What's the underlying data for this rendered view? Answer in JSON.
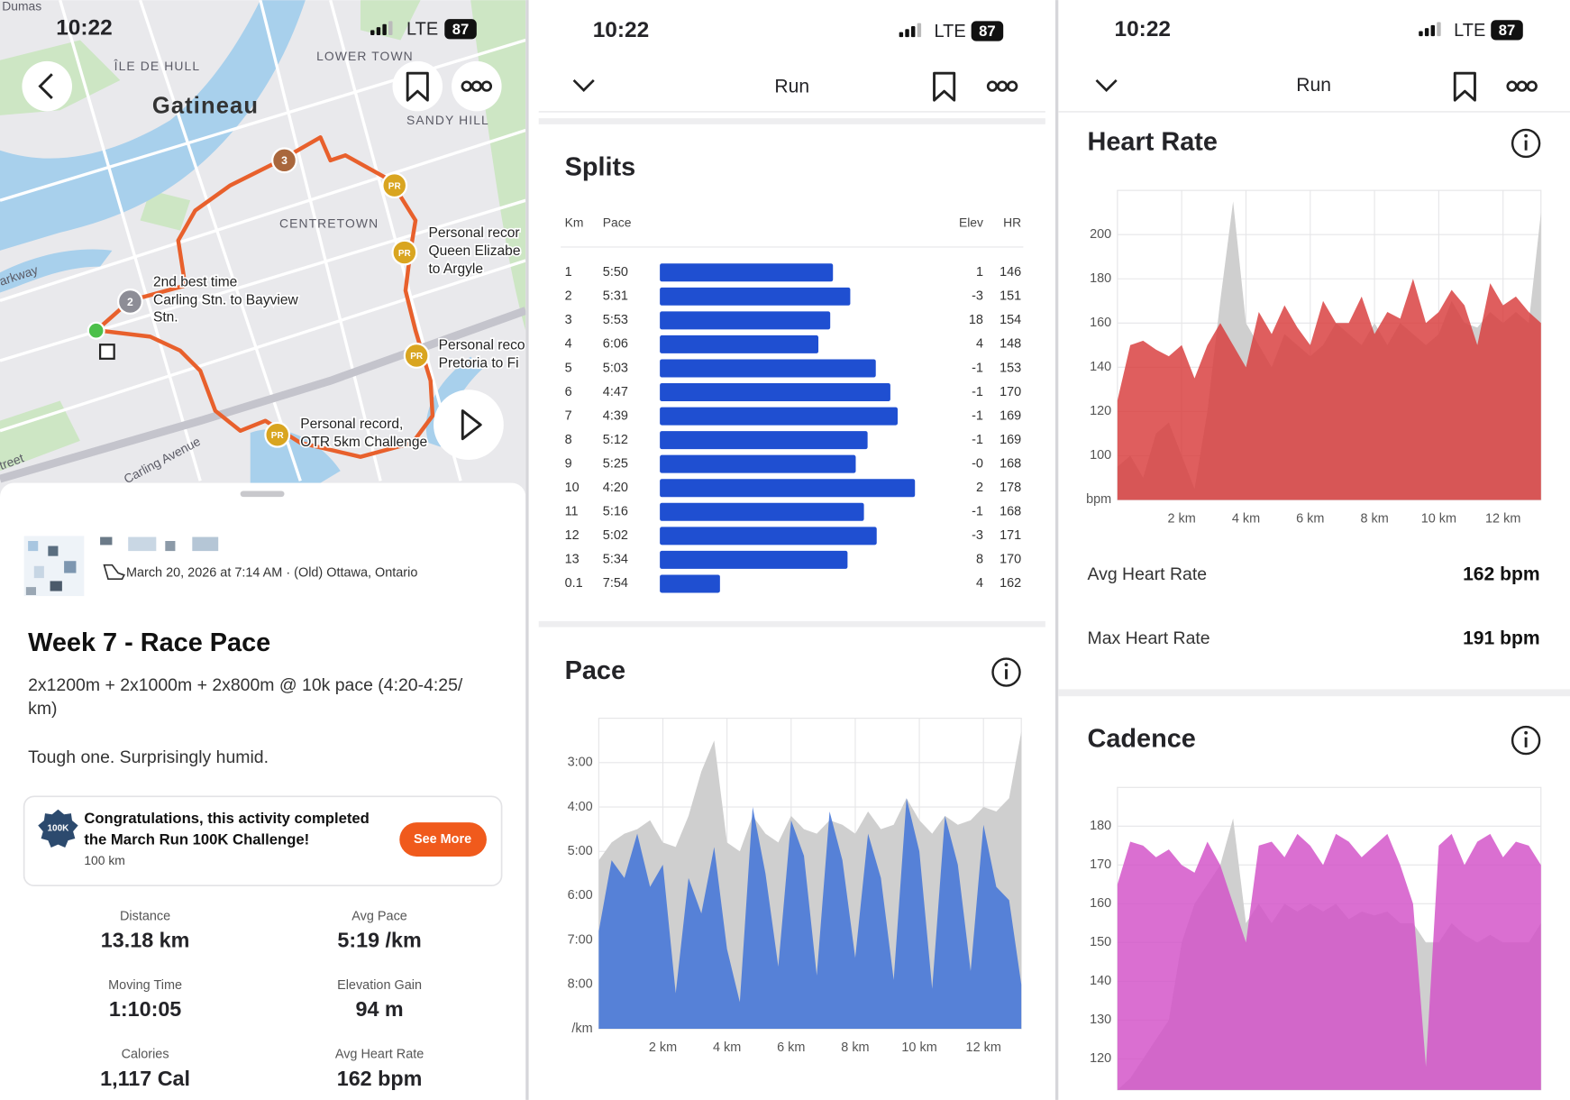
{
  "status_bar": {
    "time": "10:22",
    "network": "LTE",
    "battery": "87"
  },
  "map": {
    "labels": [
      "Dumas",
      "ÎLE DE HULL",
      "LOWER TOWN",
      "Gatineau",
      "SANDY HILL",
      "CENTRETOWN",
      "arkway",
      "Carling Avenue",
      "treet"
    ],
    "notes": [
      "Personal recor",
      "Queen Elizabe",
      "to Argyle",
      "2nd best time",
      "Carling Stn. to Bayview",
      "Stn.",
      "Personal reco",
      "Pretoria to Fi",
      "Personal record,",
      "OTR 5km Challenge"
    ],
    "markers": [
      "3",
      "PR",
      "PR",
      "2",
      "PR",
      "PR"
    ]
  },
  "activity": {
    "date_location": "March 20, 2026 at 7:14 AM · (Old) Ottawa, Ontario",
    "title": "Week 7 - Race Pace",
    "description": [
      "2x1200m + 2x1000m + 2x800m @ 10k pace (4:20-4:25/",
      "km)"
    ],
    "note": "Tough one. Surprisingly humid.",
    "challenge": {
      "badge": "100K",
      "lines": [
        "Congratulations, this activity completed",
        "the March Run 100K Challenge!"
      ],
      "distance": "100 km",
      "button": "See More"
    },
    "stats": [
      {
        "label": "Distance",
        "value": "13.18 km"
      },
      {
        "label": "Avg Pace",
        "value": "5:19 /km"
      },
      {
        "label": "Moving Time",
        "value": "1:10:05"
      },
      {
        "label": "Elevation Gain",
        "value": "94 m"
      },
      {
        "label": "Calories",
        "value": "1,117 Cal"
      },
      {
        "label": "Avg Heart Rate",
        "value": "162 bpm"
      }
    ]
  },
  "header": {
    "title": "Run"
  },
  "heart_rate_summary": [
    {
      "label": "Avg Heart Rate",
      "value": "162 bpm"
    },
    {
      "label": "Max Heart Rate",
      "value": "191 bpm"
    }
  ],
  "chart_data": [
    {
      "type": "bar",
      "orientation": "horizontal",
      "title": "Splits",
      "columns": [
        "Km",
        "Pace",
        "Elev",
        "HR"
      ],
      "categories": [
        "1",
        "2",
        "3",
        "4",
        "5",
        "6",
        "7",
        "8",
        "9",
        "10",
        "11",
        "12",
        "13",
        "0.1"
      ],
      "values": [
        5.8333,
        5.5167,
        5.8833,
        6.1,
        5.05,
        4.7833,
        4.65,
        5.2,
        5.4167,
        4.3333,
        5.2667,
        5.0333,
        5.5667,
        7.9
      ],
      "value_labels": [
        "5:50",
        "5:31",
        "5:53",
        "6:06",
        "5:03",
        "4:47",
        "4:39",
        "5:12",
        "5:25",
        "4:20",
        "5:16",
        "5:02",
        "5:34",
        "7:54"
      ],
      "elev": [
        "1",
        "-3",
        "18",
        "4",
        "-1",
        "-1",
        "-1",
        "-1",
        "-0",
        "2",
        "-1",
        "-3",
        "8",
        "4"
      ],
      "hr": [
        146,
        151,
        154,
        148,
        153,
        170,
        169,
        169,
        168,
        178,
        168,
        171,
        170,
        162
      ],
      "color": "#1f4fd1",
      "xlim": [
        9,
        4
      ]
    },
    {
      "type": "area",
      "title": "Pace",
      "x": [
        0,
        0.4,
        0.8,
        1.2,
        1.6,
        2,
        2.4,
        2.8,
        3.2,
        3.6,
        4,
        4.4,
        4.8,
        5.2,
        5.6,
        6,
        6.4,
        6.8,
        7.2,
        7.6,
        8,
        8.4,
        8.8,
        9.2,
        9.6,
        10,
        10.4,
        10.8,
        11.2,
        11.6,
        12,
        12.4,
        12.8,
        13.18
      ],
      "series": [
        {
          "color": "#cfcfcf",
          "values": [
            5.2,
            4.8,
            4.6,
            4.5,
            4.3,
            4.8,
            4.9,
            4.2,
            3.2,
            2.5,
            4.8,
            5.0,
            4.2,
            4.6,
            4.8,
            4.2,
            4.5,
            4.6,
            4.3,
            4.4,
            4.6,
            4.1,
            4.5,
            4.4,
            3.8,
            4.3,
            4.6,
            4.2,
            4.4,
            4.3,
            4.0,
            4.1,
            3.8,
            2.3
          ]
        },
        {
          "color": "#3a6fd8",
          "values": [
            6.8,
            5.2,
            5.6,
            4.6,
            5.8,
            5.3,
            8.2,
            5.6,
            6.4,
            4.9,
            7.2,
            8.4,
            4.0,
            5.5,
            7.6,
            4.3,
            5.1,
            7.8,
            4.1,
            5.2,
            7.4,
            4.6,
            5.6,
            7.9,
            3.8,
            5.0,
            8.1,
            4.2,
            5.3,
            7.7,
            4.4,
            5.8,
            6.1,
            8.0
          ]
        }
      ],
      "xlim": [
        0,
        13.18
      ],
      "xticks": [
        {
          "value": 2,
          "label": "2 km"
        },
        {
          "value": 4,
          "label": "4 km"
        },
        {
          "value": 6,
          "label": "6 km"
        },
        {
          "value": 8,
          "label": "8 km"
        },
        {
          "value": 10,
          "label": "10 km"
        },
        {
          "value": 12,
          "label": "12 km"
        }
      ],
      "ylim": [
        9,
        2
      ],
      "yticks": [
        {
          "value": 3,
          "label": "3:00"
        },
        {
          "value": 4,
          "label": "4:00"
        },
        {
          "value": 5,
          "label": "5:00"
        },
        {
          "value": 6,
          "label": "6:00"
        },
        {
          "value": 7,
          "label": "7:00"
        },
        {
          "value": 8,
          "label": "8:00"
        },
        {
          "value": 9,
          "label": "/km"
        }
      ],
      "grid": true
    },
    {
      "type": "area",
      "title": "Heart Rate",
      "x": [
        0,
        0.4,
        0.8,
        1.2,
        1.6,
        2,
        2.4,
        2.8,
        3.2,
        3.6,
        4,
        4.4,
        4.8,
        5.2,
        5.6,
        6,
        6.4,
        6.8,
        7.2,
        7.6,
        8,
        8.4,
        8.8,
        9.2,
        9.6,
        10,
        10.4,
        10.8,
        11.2,
        11.6,
        12,
        12.4,
        12.8,
        13.18
      ],
      "series": [
        {
          "color": "#cfcfcf",
          "values": [
            95,
            100,
            90,
            110,
            115,
            100,
            85,
            120,
            170,
            215,
            160,
            150,
            140,
            155,
            150,
            145,
            150,
            160,
            155,
            150,
            160,
            150,
            160,
            155,
            150,
            155,
            170,
            160,
            158,
            165,
            160,
            165,
            160,
            210
          ]
        },
        {
          "color": "#d83a3a",
          "values": [
            125,
            150,
            152,
            148,
            145,
            150,
            135,
            150,
            160,
            150,
            140,
            165,
            155,
            168,
            158,
            150,
            170,
            160,
            160,
            172,
            155,
            165,
            162,
            180,
            160,
            165,
            175,
            168,
            150,
            178,
            168,
            172,
            165,
            160
          ]
        }
      ],
      "xlim": [
        0,
        13.18
      ],
      "xticks": [
        {
          "value": 2,
          "label": "2 km"
        },
        {
          "value": 4,
          "label": "4 km"
        },
        {
          "value": 6,
          "label": "6 km"
        },
        {
          "value": 8,
          "label": "8 km"
        },
        {
          "value": 10,
          "label": "10 km"
        },
        {
          "value": 12,
          "label": "12 km"
        }
      ],
      "ylim": [
        80,
        220
      ],
      "yticks": [
        {
          "value": 80,
          "label": "bpm"
        },
        100,
        120,
        140,
        160,
        180,
        200
      ],
      "grid": true
    },
    {
      "type": "area",
      "title": "Cadence",
      "x": [
        0,
        0.4,
        0.8,
        1.2,
        1.6,
        2,
        2.4,
        2.8,
        3.2,
        3.6,
        4,
        4.4,
        4.8,
        5.2,
        5.6,
        6,
        6.4,
        6.8,
        7.2,
        7.6,
        8,
        8.4,
        8.8,
        9.2,
        9.6,
        10,
        10.4,
        10.8,
        11.2,
        11.6,
        12,
        12.4,
        12.8,
        13.18
      ],
      "series": [
        {
          "color": "#cfcfcf",
          "values": [
            112,
            115,
            120,
            125,
            130,
            150,
            160,
            165,
            170,
            182,
            155,
            160,
            155,
            160,
            158,
            160,
            158,
            160,
            156,
            158,
            157,
            158,
            155,
            155,
            150,
            150,
            155,
            152,
            150,
            152,
            150,
            150,
            150,
            155
          ]
        },
        {
          "color": "#d24fc7",
          "values": [
            165,
            176,
            175,
            172,
            174,
            170,
            168,
            176,
            170,
            160,
            150,
            175,
            176,
            172,
            178,
            175,
            170,
            178,
            176,
            172,
            175,
            178,
            170,
            160,
            118,
            175,
            178,
            170,
            176,
            178,
            172,
            176,
            175,
            170
          ]
        }
      ],
      "xlim": [
        0,
        13.18
      ],
      "ylim": [
        112,
        190
      ],
      "yticks": [
        120,
        130,
        140,
        150,
        160,
        170,
        180
      ],
      "grid": true
    }
  ]
}
